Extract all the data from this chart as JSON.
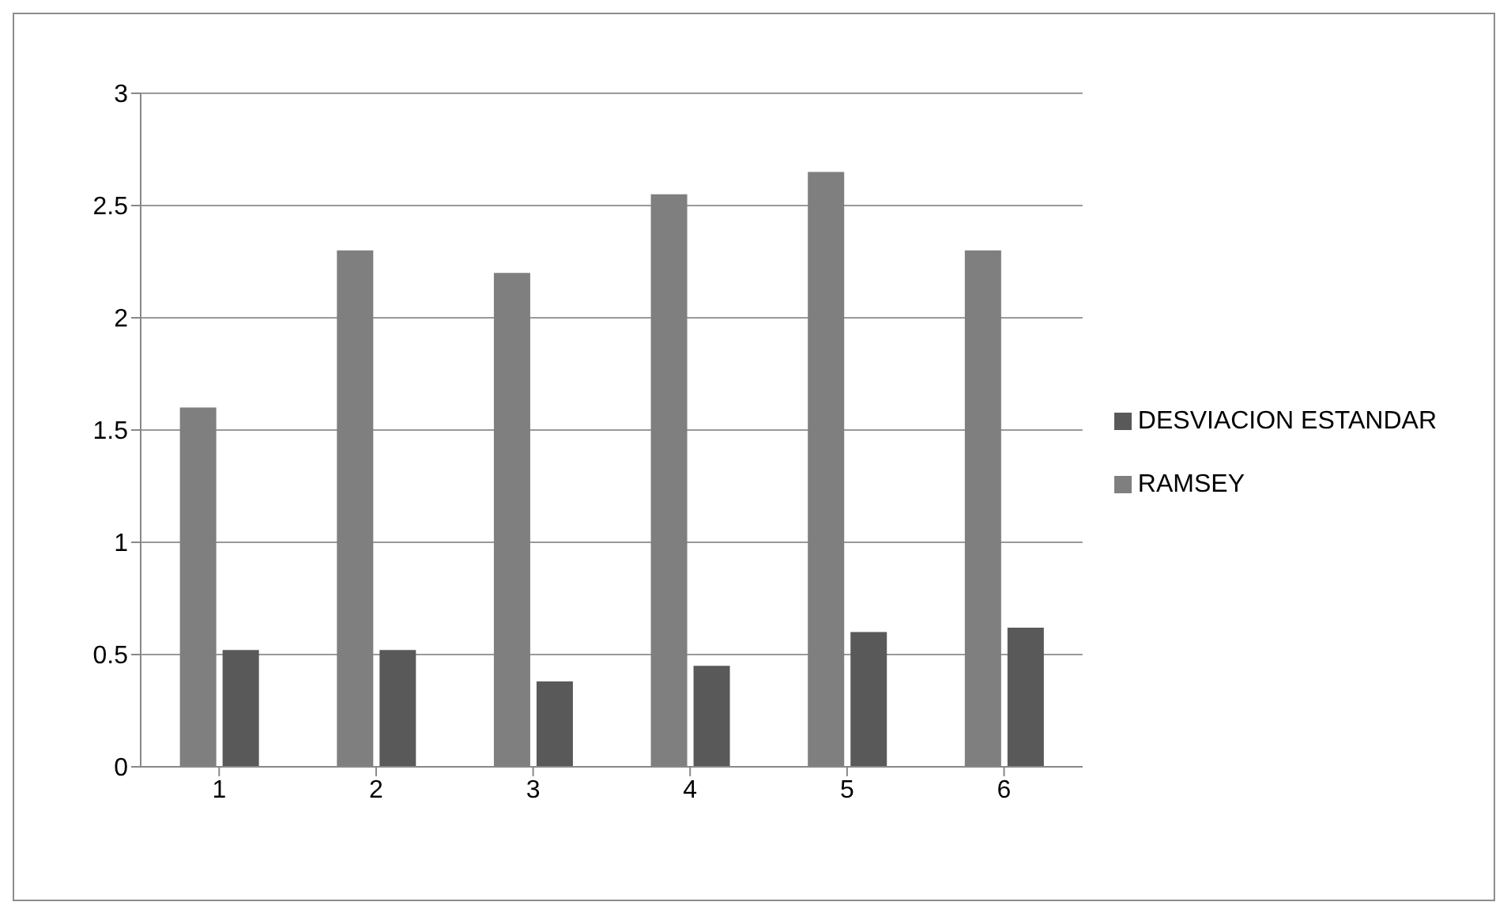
{
  "chart_data": {
    "type": "bar",
    "categories": [
      "1",
      "2",
      "3",
      "4",
      "5",
      "6"
    ],
    "series": [
      {
        "name": "RAMSEY",
        "color": "#7f7f7f",
        "values": [
          1.6,
          2.3,
          2.2,
          2.55,
          2.65,
          2.3
        ]
      },
      {
        "name": "DESVIACION ESTANDAR",
        "color": "#595959",
        "values": [
          0.52,
          0.52,
          0.38,
          0.45,
          0.6,
          0.62
        ]
      }
    ],
    "ylim": [
      0,
      3
    ],
    "yticks": [
      0,
      0.5,
      1,
      1.5,
      2,
      2.5,
      3
    ],
    "grid": "y",
    "legend": "right"
  }
}
